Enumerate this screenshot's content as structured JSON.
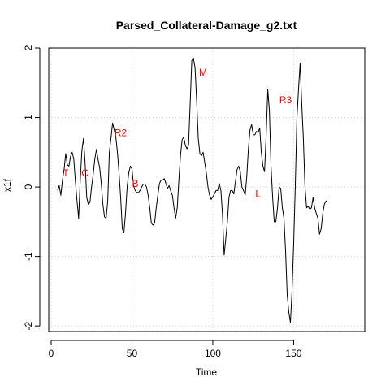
{
  "chart_data": {
    "type": "line",
    "title": "Parsed_Collateral-Damage_g2.txt",
    "xlabel": "Time",
    "ylabel": "x1f",
    "xlim": [
      -1.5,
      194
    ],
    "ylim": [
      -2.08,
      2.0
    ],
    "x_ticks": [
      0,
      50,
      100,
      150
    ],
    "y_ticks": [
      -2,
      -1,
      0,
      1,
      2
    ],
    "grid": true,
    "line_color": "#000000",
    "annotation_color": "#ff0000",
    "series": [
      {
        "x_start": 4,
        "x_step": 1,
        "values": [
          -0.05,
          0.02,
          -0.12,
          0.1,
          0.25,
          0.48,
          0.32,
          0.3,
          0.44,
          0.5,
          0.4,
          0.08,
          -0.2,
          -0.45,
          0.1,
          0.52,
          0.7,
          0.35,
          -0.15,
          -0.25,
          -0.22,
          0.0,
          0.18,
          0.4,
          0.54,
          0.4,
          0.28,
          0.05,
          -0.25,
          -0.43,
          -0.45,
          -0.2,
          0.5,
          0.7,
          0.92,
          0.82,
          0.72,
          0.5,
          0.2,
          -0.15,
          -0.6,
          -0.66,
          -0.38,
          0.0,
          0.2,
          0.3,
          0.26,
          0.02,
          -0.05,
          -0.08,
          -0.08,
          -0.05,
          0.0,
          0.04,
          0.04,
          0.0,
          -0.12,
          -0.3,
          -0.52,
          -0.55,
          -0.52,
          -0.3,
          -0.12,
          0.05,
          0.1,
          0.1,
          0.12,
          0.05,
          -0.02,
          0.02,
          -0.06,
          -0.12,
          -0.3,
          -0.45,
          -0.3,
          0.1,
          0.45,
          0.68,
          0.72,
          0.6,
          0.55,
          0.6,
          1.2,
          1.82,
          1.85,
          1.72,
          1.25,
          0.7,
          0.48,
          0.45,
          0.5,
          0.35,
          0.2,
          0.0,
          -0.12,
          -0.18,
          -0.14,
          -0.1,
          -0.05,
          -0.05,
          0.05,
          -0.05,
          -0.4,
          -0.98,
          -0.75,
          -0.5,
          -0.15,
          -0.05,
          -0.05,
          -0.1,
          0.08,
          0.25,
          0.3,
          0.22,
          0.0,
          -0.05,
          -0.12,
          0.15,
          0.55,
          0.82,
          0.9,
          0.75,
          0.75,
          0.8,
          0.78,
          0.85,
          0.5,
          0.3,
          0.22,
          0.75,
          1.4,
          1.1,
          0.3,
          -0.15,
          -0.5,
          -0.5,
          -0.3,
          0.0,
          -0.02,
          -0.3,
          -0.45,
          -0.92,
          -1.55,
          -1.8,
          -1.95,
          -1.5,
          -0.82,
          0.0,
          0.98,
          1.4,
          1.78,
          1.2,
          0.7,
          0.0,
          -0.3,
          -0.28,
          -0.32,
          -0.3,
          -0.15,
          -0.3,
          -0.38,
          -0.45,
          -0.68,
          -0.6,
          -0.38,
          -0.25,
          -0.2,
          -0.22
        ]
      }
    ],
    "annotations": [
      {
        "label": "T",
        "x": 9,
        "y": 0.2
      },
      {
        "label": "C",
        "x": 21,
        "y": 0.2
      },
      {
        "label": "R2",
        "x": 43,
        "y": 0.78
      },
      {
        "label": "B",
        "x": 52,
        "y": 0.05
      },
      {
        "label": "M",
        "x": 94,
        "y": 1.65
      },
      {
        "label": "L",
        "x": 128,
        "y": -0.1
      },
      {
        "label": "R3",
        "x": 145,
        "y": 1.25
      }
    ]
  }
}
